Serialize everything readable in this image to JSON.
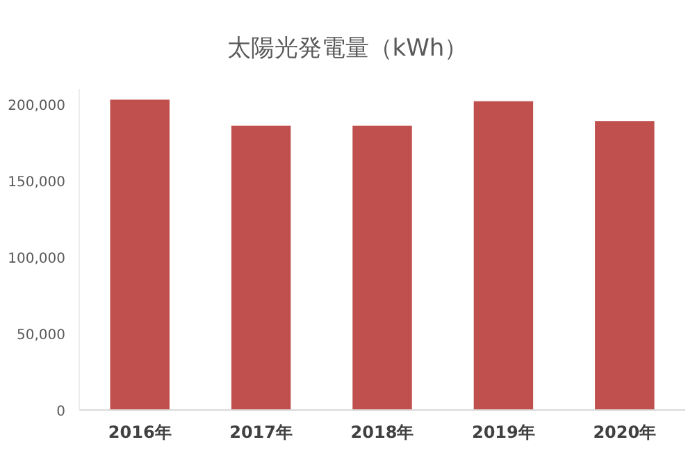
{
  "chart_data": {
    "type": "bar",
    "title": "太陽光発電量（kWh）",
    "categories": [
      "2016年",
      "2017年",
      "2018年",
      "2019年",
      "2020年"
    ],
    "values": [
      203000,
      186000,
      186000,
      202000,
      189000
    ],
    "color": "#c0504d",
    "ylim": [
      0,
      210000
    ],
    "yticks": [
      {
        "value": 0,
        "label": "0"
      },
      {
        "value": 50000,
        "label": "50,000"
      },
      {
        "value": 100000,
        "label": "100,000"
      },
      {
        "value": 150000,
        "label": "150,000"
      },
      {
        "value": 200000,
        "label": "200,000"
      }
    ],
    "grid": false,
    "legend": false
  }
}
